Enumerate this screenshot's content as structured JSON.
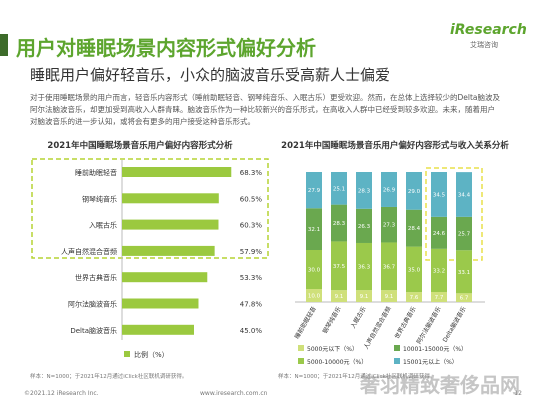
{
  "header": {
    "title": "用户对睡眠场景内容形式偏好分析",
    "logo": "iResearch",
    "logo_sub": "艾瑞咨询",
    "subtitle": "睡眠用户偏好轻音乐，小众的脑波音乐受高薪人士偏爱",
    "paragraph": "对于使用睡眠场景的用户而言，轻音乐内容形式（睡前助眠轻音、钢琴纯音乐、入眠古乐）更受欢迎。然而，在总体上选择较少的Delta脑波及阿尔法脑波音乐，却更加受到高收入人群青睐。脑波音乐作为一种比较新兴的音乐形式，在高收入人群中已经受到较多欢迎。未来，随着用户对脑波音乐的进一步认知，或将会有更多的用户接受这种音乐形式。"
  },
  "chart_data": [
    {
      "type": "hbar",
      "title": "2021年中国睡眠场景音乐用户偏好内容形式分析",
      "categories": [
        "睡前助眠轻音",
        "钢琴纯音乐",
        "入眠古乐",
        "人声自然混合音频",
        "世界古典音乐",
        "阿尔法脑波音乐",
        "Delta脑波音乐"
      ],
      "series": [
        {
          "name": "比例（%）",
          "color": "#9bc93f",
          "values": [
            68.3,
            60.5,
            60.3,
            57.9,
            53.3,
            47.8,
            45.0
          ],
          "value_labels": [
            "68.3%",
            "60.5%",
            "60.3%",
            "57.9%",
            "53.3%",
            "47.8%",
            "45.0%"
          ]
        }
      ],
      "note": "样本：N=1000；于2021年12月通过iClick社区联机调研获得。"
    },
    {
      "type": "stacked_bar",
      "title": "2021年中国睡眠场景音乐用户偏好内容形式与收入关系分析",
      "categories": [
        "睡前助眠轻音",
        "钢琴纯音乐",
        "入眠古乐",
        "人声自然混合音频",
        "世界古典音乐",
        "阿尔法脑波音乐",
        "Delta脑波音乐"
      ],
      "ylim": [
        0,
        100
      ],
      "series": [
        {
          "name": "5000元以下（%）",
          "color": "#cfe07a",
          "values": [
            10.0,
            9.1,
            9.1,
            9.1,
            7.6,
            7.7,
            6.7
          ],
          "value_labels": [
            "10.0",
            "9.1",
            "9.1",
            "9.1",
            "7.6",
            "7.7",
            "6.7"
          ]
        },
        {
          "name": "5000-10000元（%）",
          "color": "#9bc94b",
          "values": [
            30.0,
            37.5,
            36.3,
            36.7,
            35.0,
            33.2,
            33.1
          ],
          "value_labels": [
            "30.0",
            "37.5",
            "36.3",
            "36.7",
            "35.0",
            "33.2",
            "33.1"
          ]
        },
        {
          "name": "10001-15000元（%）",
          "color": "#6aa84f",
          "values": [
            32.1,
            28.3,
            26.3,
            27.3,
            28.4,
            24.6,
            25.7
          ],
          "value_labels": [
            "32.1",
            "28.3",
            "26.3",
            "27.3",
            "28.4",
            "24.6",
            "25.7"
          ]
        },
        {
          "name": "15001元以上（%）",
          "color": "#5db3c4",
          "values": [
            27.9,
            25.1,
            28.3,
            26.9,
            29.0,
            34.5,
            34.4
          ],
          "value_labels": [
            "27.9",
            "25.1",
            "28.3",
            "26.9",
            "29.0",
            "34.5",
            "34.4"
          ]
        }
      ],
      "note": "样本：N=1000；于2021年12月通过iClick社区联机调研获得。"
    }
  ],
  "footer": {
    "copyright": "©2021.12 iResearch Inc.",
    "url": "www.iresearch.com.cn",
    "page": "12",
    "watermark": "奢羽精致奢侈品网"
  }
}
